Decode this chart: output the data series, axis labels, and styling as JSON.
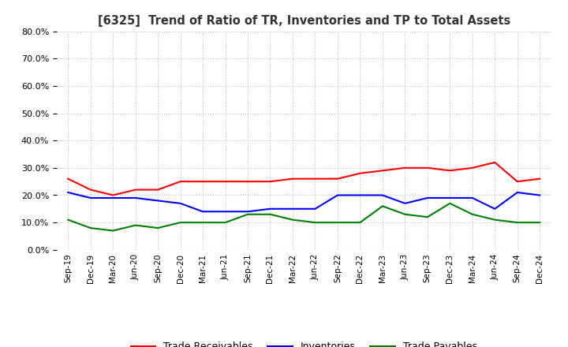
{
  "title": "[6325]  Trend of Ratio of TR, Inventories and TP to Total Assets",
  "x_labels": [
    "Sep-19",
    "Dec-19",
    "Mar-20",
    "Jun-20",
    "Sep-20",
    "Dec-20",
    "Mar-21",
    "Jun-21",
    "Sep-21",
    "Dec-21",
    "Mar-22",
    "Jun-22",
    "Sep-22",
    "Dec-22",
    "Mar-23",
    "Jun-23",
    "Sep-23",
    "Dec-23",
    "Mar-24",
    "Jun-24",
    "Sep-24",
    "Dec-24"
  ],
  "trade_receivables": [
    0.26,
    0.22,
    0.2,
    0.22,
    0.22,
    0.25,
    0.25,
    0.25,
    0.25,
    0.25,
    0.26,
    0.26,
    0.26,
    0.28,
    0.29,
    0.3,
    0.3,
    0.29,
    0.3,
    0.32,
    0.25,
    0.26
  ],
  "inventories": [
    0.21,
    0.19,
    0.19,
    0.19,
    0.18,
    0.17,
    0.14,
    0.14,
    0.14,
    0.15,
    0.15,
    0.15,
    0.2,
    0.2,
    0.2,
    0.17,
    0.19,
    0.19,
    0.19,
    0.15,
    0.21,
    0.2
  ],
  "trade_payables": [
    0.11,
    0.08,
    0.07,
    0.09,
    0.08,
    0.1,
    0.1,
    0.1,
    0.13,
    0.13,
    0.11,
    0.1,
    0.1,
    0.1,
    0.16,
    0.13,
    0.12,
    0.17,
    0.13,
    0.11,
    0.1,
    0.1
  ],
  "ylim": [
    0.0,
    0.8
  ],
  "yticks": [
    0.0,
    0.1,
    0.2,
    0.3,
    0.4,
    0.5,
    0.6,
    0.7,
    0.8
  ],
  "colors": {
    "trade_receivables": "#FF0000",
    "inventories": "#0000FF",
    "trade_payables": "#008000"
  },
  "background_color": "#FFFFFF",
  "grid_color": "#BBBBBB"
}
